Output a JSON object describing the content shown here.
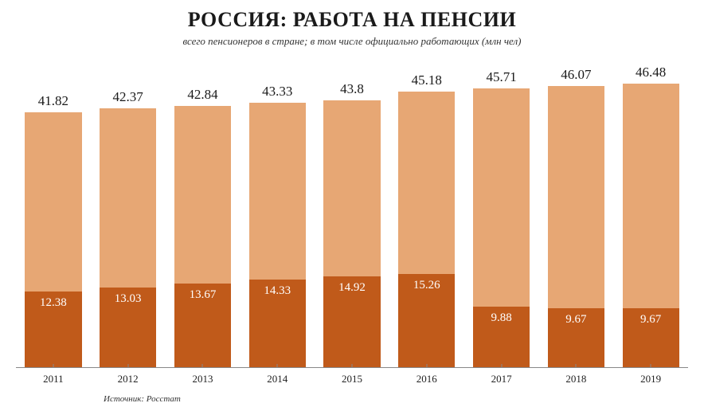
{
  "title": "РОССИЯ: РАБОТА НА ПЕНСИИ",
  "subtitle": "всего пенсионеров в стране; в том числе официально работающих (млн чел)",
  "source": "Источник: Росстат",
  "chart": {
    "type": "stacked-bar",
    "y_max": 50,
    "background_color": "#ffffff",
    "upper_color": "#e7a774",
    "lower_color": "#c05a1a",
    "total_label_color": "#1a1a1a",
    "inner_label_color": "#ffffff",
    "axis_color": "#888888",
    "title_fontsize": 26,
    "subtitle_fontsize": 13,
    "total_label_fontsize": 17,
    "inner_label_fontsize": 15,
    "year_fontsize": 13,
    "bar_width_pct": 76,
    "years": [
      "2011",
      "2012",
      "2013",
      "2014",
      "2015",
      "2016",
      "2017",
      "2018",
      "2019"
    ],
    "totals": [
      41.82,
      42.37,
      42.84,
      43.33,
      43.8,
      45.18,
      45.71,
      46.07,
      46.48
    ],
    "working": [
      12.38,
      13.03,
      13.67,
      14.33,
      14.92,
      15.26,
      9.88,
      9.67,
      9.67
    ],
    "total_labels": [
      "41.82",
      "42.37",
      "42.84",
      "43.33",
      "43.8",
      "45.18",
      "45.71",
      "46.07",
      "46.48"
    ],
    "working_labels": [
      "12.38",
      "13.03",
      "13.67",
      "14.33",
      "14.92",
      "15.26",
      "9.88",
      "9.67",
      "9.67"
    ]
  }
}
